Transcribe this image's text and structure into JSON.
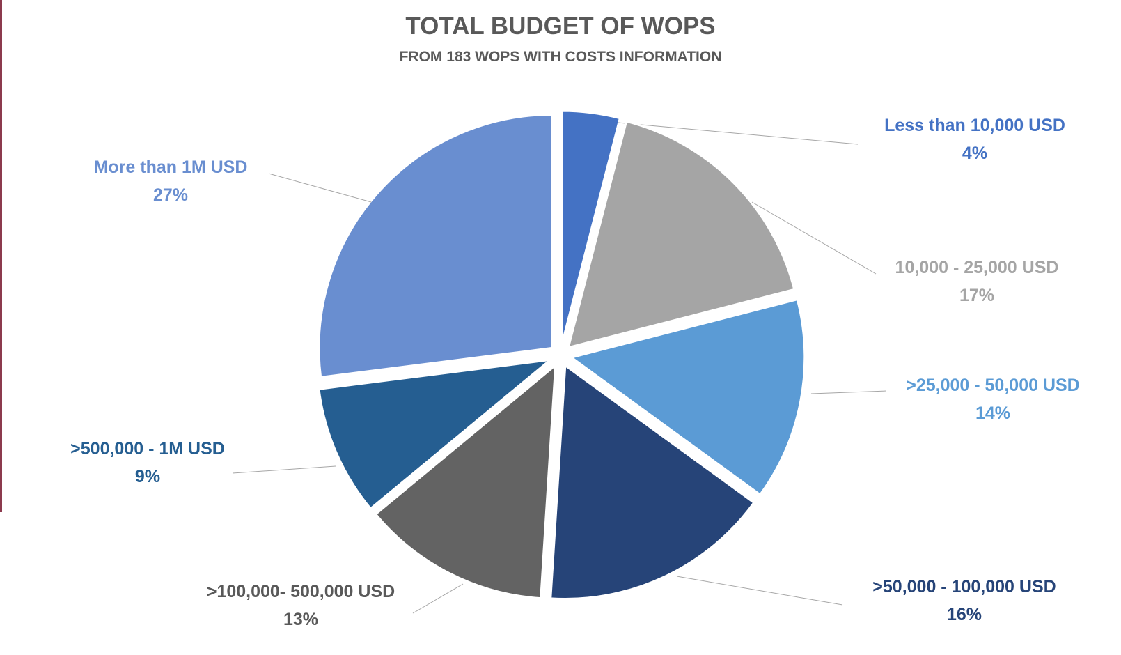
{
  "chart_data": {
    "type": "pie",
    "title": "TOTAL BUDGET OF WOPS",
    "subtitle": "FROM 183 WOPS WITH COSTS INFORMATION",
    "slices": [
      {
        "label": "Less than 10,000 USD",
        "value": 4,
        "value_label": "4%",
        "color": "#4472c4"
      },
      {
        "label": "10,000 - 25,000 USD",
        "value": 17,
        "value_label": "17%",
        "color": "#a5a5a5"
      },
      {
        "label": ">25,000 - 50,000 USD",
        "value": 14,
        "value_label": "14%",
        "color": "#5b9bd5"
      },
      {
        "label": ">50,000 - 100,000 USD",
        "value": 16,
        "value_label": "16%",
        "color": "#264478"
      },
      {
        "label": ">100,000- 500,000 USD",
        "value": 13,
        "value_label": "13%",
        "color": "#636363"
      },
      {
        "label": ">500,000 - 1M USD",
        "value": 9,
        "value_label": "9%",
        "color": "#255e91"
      },
      {
        "label": "More than 1M USD",
        "value": 27,
        "value_label": "27%",
        "color": "#698ed0"
      }
    ],
    "label_colors": [
      "#4472c4",
      "#a5a5a5",
      "#5b9bd5",
      "#264478",
      "#595959",
      "#255e91",
      "#698ed0"
    ],
    "exploded": true,
    "legend": "none"
  }
}
